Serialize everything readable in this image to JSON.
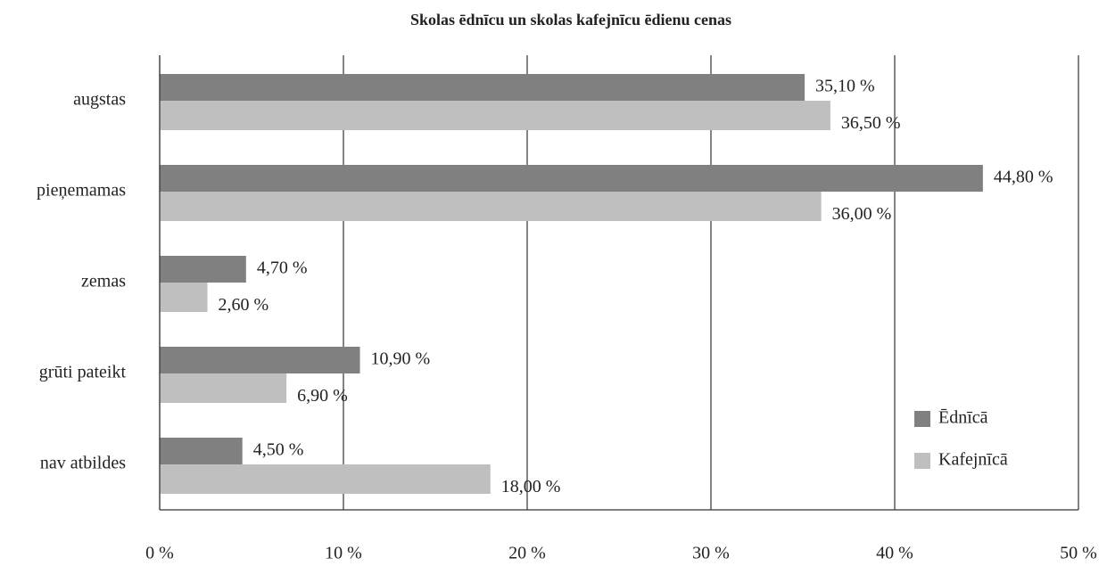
{
  "chart_data": {
    "type": "bar",
    "orientation": "horizontal",
    "title": "Skolas ēdnīcu un skolas kafejnīcu ēdienu cenas",
    "categories": [
      "augstas",
      "pieņemamas",
      "zemas",
      "grūti pateikt",
      "nav atbildes"
    ],
    "series": [
      {
        "name": "Ēdnīcā",
        "color": "#808080",
        "values": [
          35.1,
          44.8,
          4.7,
          10.9,
          4.5
        ],
        "value_labels": [
          "35,10 %",
          "44,80 %",
          "4,70 %",
          "10,90 %",
          "4,50 %"
        ]
      },
      {
        "name": "Kafejnīcā",
        "color": "#bfbfbf",
        "values": [
          36.5,
          36.0,
          2.6,
          6.9,
          18.0
        ],
        "value_labels": [
          "36,50 %",
          "36,00 %",
          "2,60 %",
          "6,90 %",
          "18,00 %"
        ]
      }
    ],
    "xlim": [
      0,
      50
    ],
    "xticks": [
      {
        "value": 0,
        "label": "0 %"
      },
      {
        "value": 10,
        "label": "10 %"
      },
      {
        "value": 20,
        "label": "20 %"
      },
      {
        "value": 30,
        "label": "30 %"
      },
      {
        "value": 40,
        "label": "40 %"
      },
      {
        "value": 50,
        "label": "50 %"
      }
    ],
    "grid": true,
    "legend": "right"
  }
}
